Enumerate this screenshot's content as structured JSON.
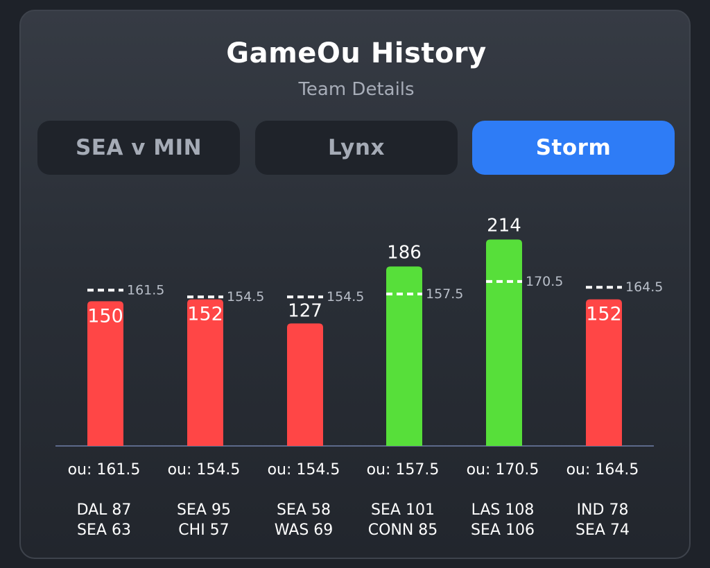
{
  "header": {
    "title": "GameOu History",
    "subtitle": "Team Details"
  },
  "tabs": [
    {
      "label": "SEA v MIN",
      "active": false
    },
    {
      "label": "Lynx",
      "active": false
    },
    {
      "label": "Storm",
      "active": true
    }
  ],
  "colors": {
    "under": "#ff4646",
    "over": "#57df3a",
    "line_marker": "#ffffff",
    "active_tab": "#2e7cf6"
  },
  "chart_data": {
    "type": "bar",
    "ylim": [
      0,
      220
    ],
    "categories": [
      "DAL 87 SEA 63",
      "SEA 95 CHI 57",
      "SEA 58 WAS 69",
      "SEA 101 CONN 85",
      "LAS 108 SEA 106",
      "IND 78 SEA 74"
    ],
    "games": [
      {
        "line1": "DAL 87",
        "line2": "SEA 63",
        "total": 150,
        "total_label": "150",
        "ou": 161.5,
        "ou_marker_label": "161.5",
        "ou_text": "ou: 161.5",
        "result": "under"
      },
      {
        "line1": "SEA 95",
        "line2": "CHI 57",
        "total": 152,
        "total_label": "152",
        "ou": 154.5,
        "ou_marker_label": "154.5",
        "ou_text": "ou: 154.5",
        "result": "under"
      },
      {
        "line1": "SEA 58",
        "line2": "WAS 69",
        "total": 127,
        "total_label": "127",
        "ou": 154.5,
        "ou_marker_label": "154.5",
        "ou_text": "ou: 154.5",
        "result": "under"
      },
      {
        "line1": "SEA 101",
        "line2": "CONN 85",
        "total": 186,
        "total_label": "186",
        "ou": 157.5,
        "ou_marker_label": "157.5",
        "ou_text": "ou: 157.5",
        "result": "over"
      },
      {
        "line1": "LAS 108",
        "line2": "SEA 106",
        "total": 214,
        "total_label": "214",
        "ou": 170.5,
        "ou_marker_label": "170.5",
        "ou_text": "ou: 170.5",
        "result": "over"
      },
      {
        "line1": "IND 78",
        "line2": "SEA 74",
        "total": 152,
        "total_label": "152",
        "ou": 164.5,
        "ou_marker_label": "164.5",
        "ou_text": "ou: 164.5",
        "result": "under"
      }
    ]
  }
}
